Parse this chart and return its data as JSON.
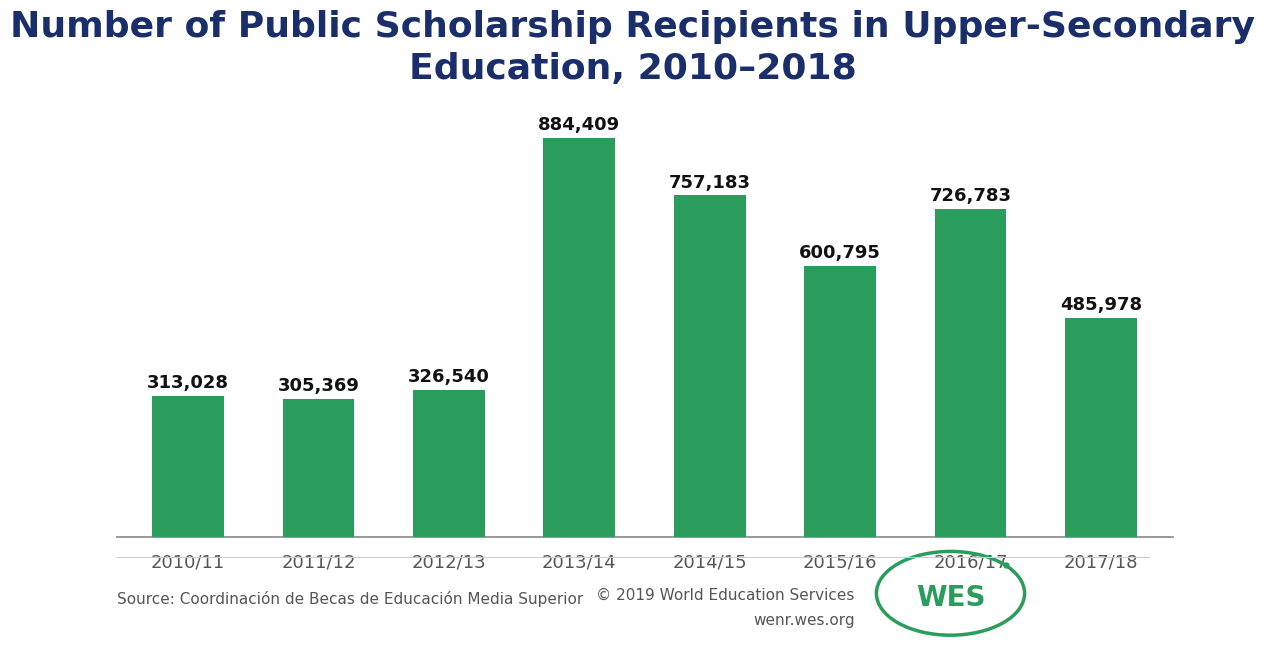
{
  "title": "Number of Public Scholarship Recipients in Upper-Secondary\nEducation, 2010–2018",
  "categories": [
    "2010/11",
    "2011/12",
    "2012/13",
    "2013/14",
    "2014/15",
    "2015/16",
    "2016/17",
    "2017/18"
  ],
  "values": [
    313028,
    305369,
    326540,
    884409,
    757183,
    600795,
    726783,
    485978
  ],
  "bar_color": "#2a9d5c",
  "title_color": "#1a2e6c",
  "value_label_color": "#111111",
  "source_text": "Source: Coordinación de Becas de Educación Media Superior",
  "copyright_text": "© 2019 World Education Services",
  "website_text": "wenr.wes.org",
  "background_color": "#ffffff",
  "ylim": [
    0,
    980000
  ],
  "title_fontsize": 26,
  "axis_label_fontsize": 13,
  "value_fontsize": 13,
  "source_fontsize": 11,
  "wes_color": "#2a9d5c",
  "bar_width": 0.55
}
